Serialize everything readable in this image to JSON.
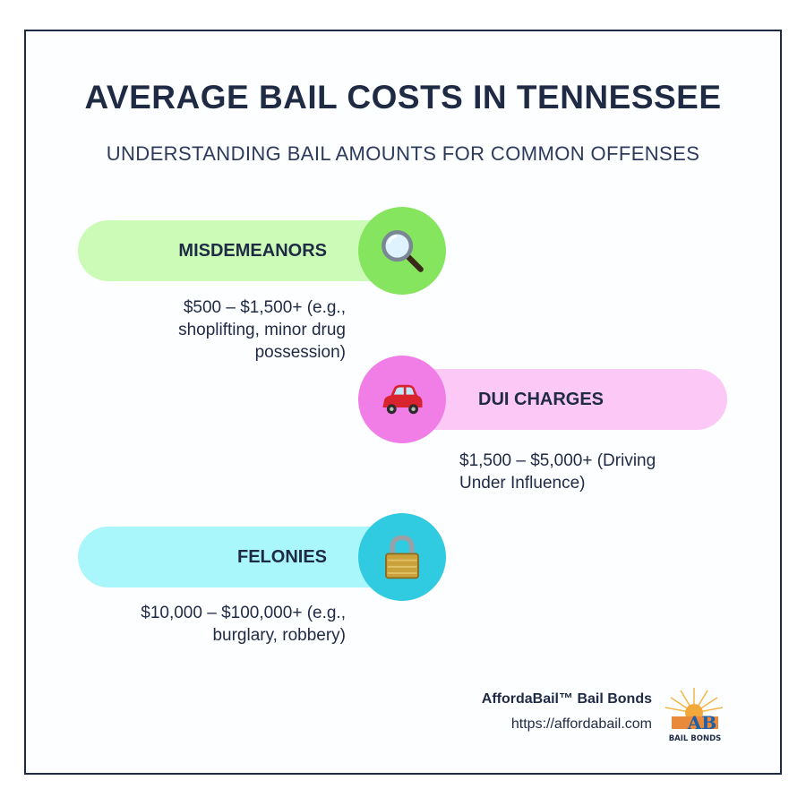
{
  "title": "AVERAGE BAIL COSTS IN TENNESSEE",
  "subtitle": "UNDERSTANDING BAIL AMOUNTS FOR COMMON OFFENSES",
  "categories": [
    {
      "label": "MISDEMEANORS",
      "desc_lines": [
        "$500 – $1,500+ (e.g.,",
        "shoplifting, minor drug",
        "possession)"
      ],
      "icon": "magnifying-glass-icon",
      "pill_color": "#ccfbb8",
      "circle_color": "#86e55e"
    },
    {
      "label": "DUI CHARGES",
      "desc_lines": [
        "$1,500 – $5,000+ (Driving",
        "Under Influence)"
      ],
      "icon": "car-icon",
      "pill_color": "#fcc9f6",
      "circle_color": "#f07ee6"
    },
    {
      "label": "FELONIES",
      "desc_lines": [
        "$10,000 – $100,000+ (e.g.,",
        "burglary, robbery)"
      ],
      "icon": "padlock-icon",
      "pill_color": "#a9f6fb",
      "circle_color": "#30cbe0"
    }
  ],
  "footer": {
    "brand_name": "AffordaBail™ Bail Bonds",
    "url": "https://affordabail.com",
    "logo_text": "BAIL BONDS",
    "logo_letters": "AB"
  },
  "colors": {
    "text": "#1f2a44",
    "border": "#1f2a44"
  }
}
